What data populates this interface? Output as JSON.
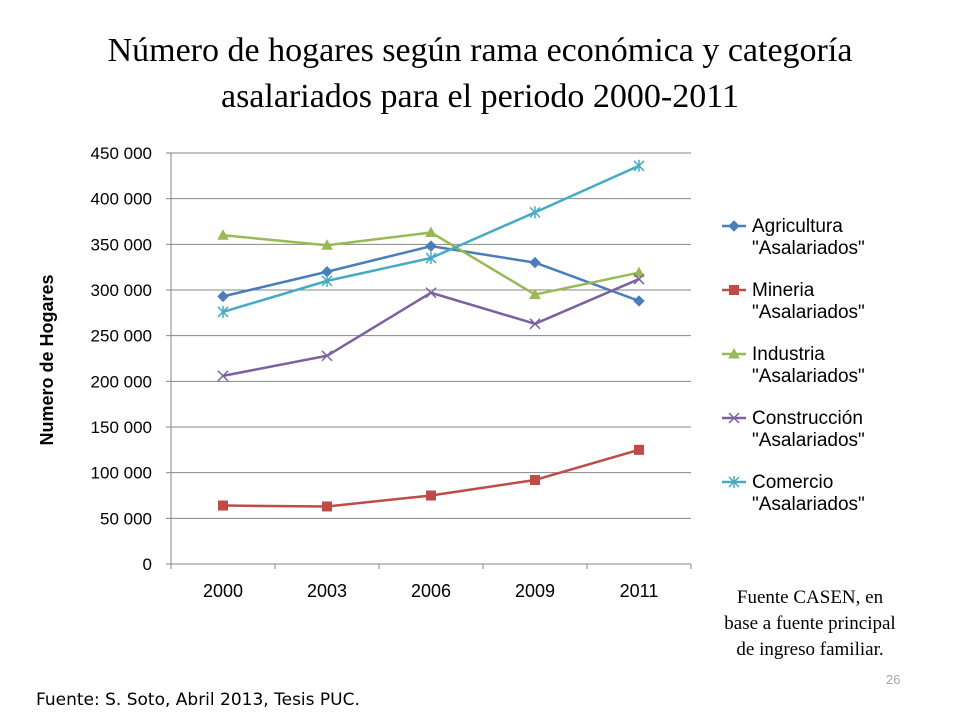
{
  "slide": {
    "title": "Número de hogares según rama económica y categoría asalariados para el periodo 2000-2011",
    "note": "Fuente CASEN, en base a fuente principal de ingreso familiar.",
    "source": "Fuente: S. Soto, Abril 2013, Tesis PUC.",
    "page_number": "26"
  },
  "chart_data": {
    "type": "line",
    "title": "",
    "xlabel": "",
    "ylabel": "Numero de Hogares",
    "categories": [
      "2000",
      "2003",
      "2006",
      "2009",
      "2011"
    ],
    "ylim": [
      0,
      450000
    ],
    "yticks": [
      0,
      50000,
      100000,
      150000,
      200000,
      250000,
      300000,
      350000,
      400000,
      450000
    ],
    "ytick_labels": [
      "0",
      "50 000",
      "100 000",
      "150 000",
      "200 000",
      "250 000",
      "300 000",
      "350 000",
      "400 000",
      "450 000"
    ],
    "grid": "horizontal",
    "legend_position": "right",
    "series": [
      {
        "name": "Agricultura \"Asalariados\"",
        "color": "#4a7ebb",
        "marker": "diamond",
        "values": [
          293000,
          320000,
          348000,
          330000,
          288000
        ]
      },
      {
        "name": "Mineria \"Asalariados\"",
        "color": "#be4b48",
        "marker": "square",
        "values": [
          64000,
          63000,
          75000,
          92000,
          125000
        ]
      },
      {
        "name": "Industria \"Asalariados\"",
        "color": "#98b954",
        "marker": "triangle",
        "values": [
          360000,
          349000,
          363000,
          295000,
          319000
        ]
      },
      {
        "name": "Construcción \"Asalariados\"",
        "color": "#7d60a0",
        "marker": "x",
        "values": [
          206000,
          228000,
          297000,
          263000,
          312000
        ]
      },
      {
        "name": "Comercio \"Asalariados\"",
        "color": "#46aac5",
        "marker": "star",
        "values": [
          276000,
          310000,
          335000,
          385000,
          436000
        ]
      }
    ]
  }
}
